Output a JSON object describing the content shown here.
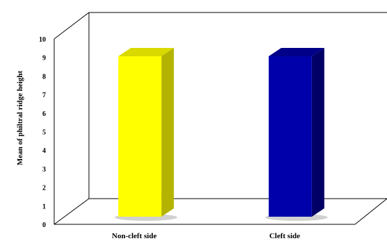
{
  "chart_data": {
    "type": "bar",
    "categories": [
      "Non-cleft side",
      "Cleft side"
    ],
    "values": [
      9.4,
      9.4
    ],
    "colors": [
      "#ffff00",
      "#0000aa"
    ],
    "side_colors": [
      "#b3b300",
      "#000066"
    ],
    "top_colors": [
      "#d9d900",
      "#000088"
    ],
    "title": "",
    "xlabel": "",
    "ylabel": "Mean of philtral ridge height",
    "ylim": [
      0,
      10
    ],
    "yticks": [
      "0",
      "1",
      "2",
      "3",
      "4",
      "5",
      "6",
      "7",
      "8",
      "9",
      "10"
    ],
    "grid": false,
    "legend": false,
    "style": "3d-column"
  }
}
